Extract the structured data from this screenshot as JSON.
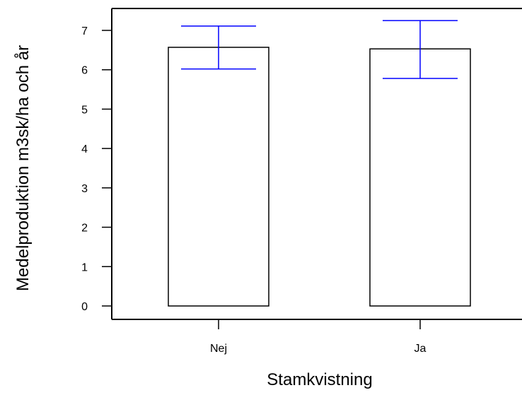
{
  "chart_data": {
    "type": "bar",
    "title": "",
    "xlabel": "Stamkvistning",
    "ylabel": "Medelproduktion m3sk/ha och år",
    "categories": [
      "Nej",
      "Ja"
    ],
    "values": [
      6.57,
      6.53
    ],
    "error_low": [
      6.02,
      5.78
    ],
    "error_high": [
      7.11,
      7.25
    ],
    "ylim": [
      0,
      7.5
    ],
    "yticks": [
      "0",
      "1",
      "2",
      "3",
      "4",
      "5",
      "6",
      "7"
    ],
    "grid": false,
    "bar_color": "#ffffff",
    "bar_edge_color": "#000000",
    "errorbar_color": "#0000ff"
  }
}
